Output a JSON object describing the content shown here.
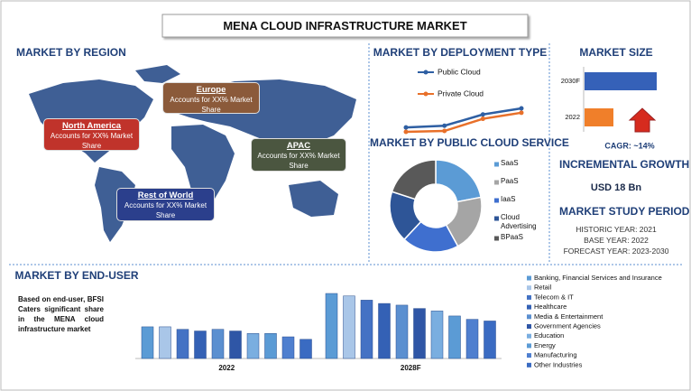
{
  "title": "MENA CLOUD INFRASTRUCTURE MARKET",
  "region": {
    "heading": "MARKET BY REGION",
    "boxes": [
      {
        "name": "Europe",
        "text": "Accounts for XX% Market Share",
        "color": "#8b5a3a"
      },
      {
        "name": "North America",
        "text": "Accounts for XX% Market Share",
        "color": "#c0332b"
      },
      {
        "name": "APAC",
        "text": "Accounts for XX% Market Share",
        "color": "#4b5640"
      },
      {
        "name": "Rest of World",
        "text": "Accounts for XX% Market Share",
        "color": "#2b3f8c"
      }
    ]
  },
  "growth": {
    "heading": "INCREMENTAL GROWTH",
    "value": "USD 18 Bn"
  },
  "study_period": {
    "heading": "MARKET STUDY PERIOD",
    "lines": [
      "HISTORIC YEAR: 2021",
      "BASE YEAR: 2022",
      "FORECAST YEAR: 2023-2030"
    ]
  },
  "end_user_note": "Based on end-user, BFSI Caters significant share in the MENA cloud infrastructure market",
  "chart_data": [
    {
      "type": "line",
      "title": "MARKET BY DEPLOYMENT TYPE",
      "categories": [
        null,
        null,
        null,
        null
      ],
      "series": [
        {
          "name": "Public Cloud",
          "color": "#2e5fa3",
          "values": [
            2,
            2.2,
            3.5,
            4.2
          ]
        },
        {
          "name": "Private Cloud",
          "color": "#e8702a",
          "values": [
            1.5,
            1.6,
            3.0,
            3.7
          ]
        }
      ]
    },
    {
      "type": "pie",
      "title": "MARKET BY PUBLIC CLOUD SERVICE",
      "categories": [
        "SaaS",
        "PaaS",
        "IaaS",
        "Cloud Advertising",
        "BPaaS"
      ],
      "values": [
        22,
        20,
        20,
        18,
        20
      ],
      "colors": [
        "#5b9bd5",
        "#a5a5a5",
        "#3f6fcf",
        "#2e5597",
        "#595959"
      ]
    },
    {
      "type": "bar",
      "orientation": "horizontal",
      "title": "MARKET SIZE",
      "categories": [
        "2030F",
        "2022"
      ],
      "values": [
        100,
        40
      ],
      "colors": [
        "#3561b8",
        "#f07f2a"
      ],
      "annotation": "CAGR:  ~14%"
    },
    {
      "type": "bar",
      "title": "MARKET BY END-USER",
      "categories": [
        "2022",
        "2028F"
      ],
      "series": [
        {
          "name": "Banking, Financial Services and Insurance",
          "color": "#5b9bd5",
          "values": [
            38,
            78
          ]
        },
        {
          "name": "Retail",
          "color": "#a9c6e8",
          "values": [
            38,
            75
          ]
        },
        {
          "name": "Telecom & IT",
          "color": "#4472c4",
          "values": [
            35,
            70
          ]
        },
        {
          "name": "Healthcare",
          "color": "#3461b5",
          "values": [
            33,
            66
          ]
        },
        {
          "name": "Media & Entertainment",
          "color": "#5b8fd0",
          "values": [
            35,
            64
          ]
        },
        {
          "name": "Government Agencies",
          "color": "#2f56a6",
          "values": [
            33,
            60
          ]
        },
        {
          "name": "Education",
          "color": "#7aaee0",
          "values": [
            30,
            57
          ]
        },
        {
          "name": "Energy",
          "color": "#5b9bd5",
          "values": [
            30,
            51
          ]
        },
        {
          "name": "Manufacturing",
          "color": "#4f7fcf",
          "values": [
            26,
            47
          ]
        },
        {
          "name": "Other Industries",
          "color": "#3a6bc2",
          "values": [
            23,
            45
          ]
        }
      ]
    }
  ]
}
